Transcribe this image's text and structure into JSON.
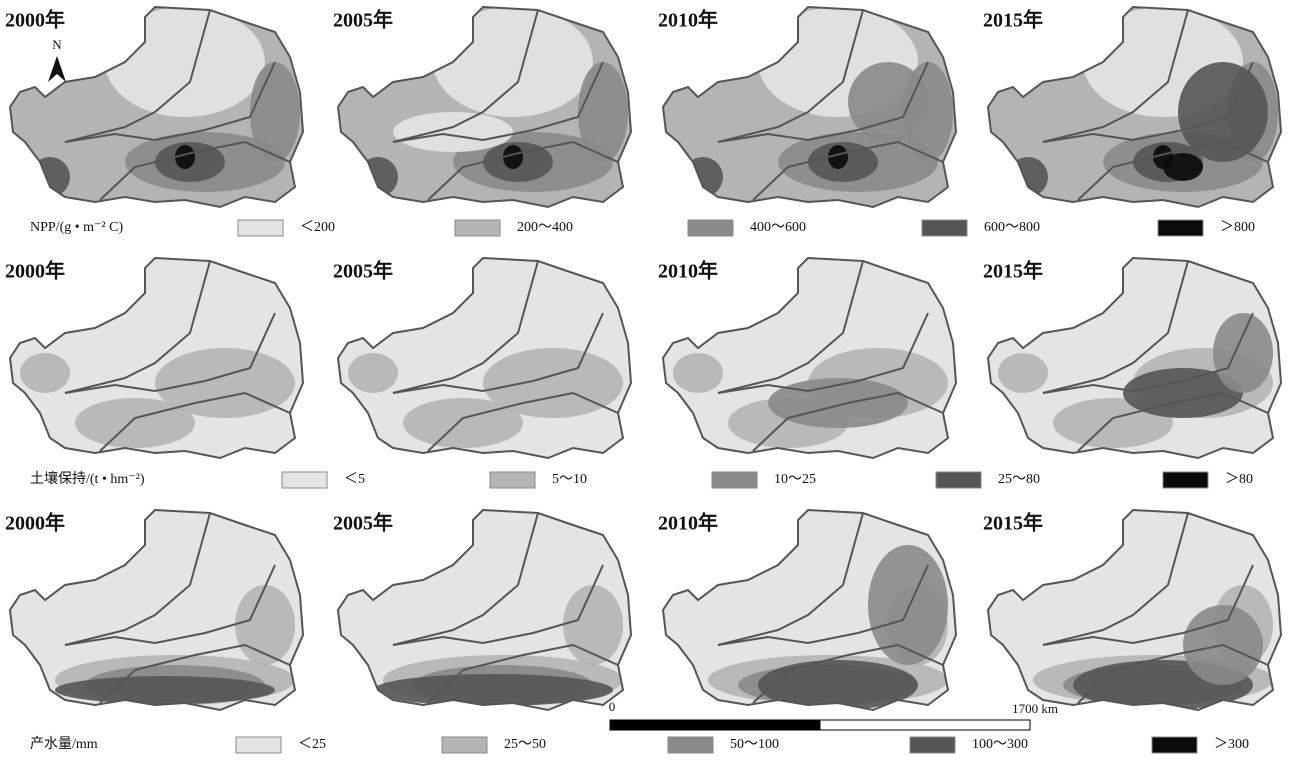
{
  "rows": [
    {
      "years": [
        "2000年",
        "2005年",
        "2010年",
        "2015年"
      ],
      "legend": {
        "title": "NPP/(g • m⁻² C)",
        "items": [
          {
            "label": "＜200",
            "color": "#e4e4e4"
          },
          {
            "label": "200～400",
            "color": "#b4b4b4"
          },
          {
            "label": "400～600",
            "color": "#8a8a8a"
          },
          {
            "label": "600～800",
            "color": "#555555"
          },
          {
            "label": "＞800",
            "color": "#0a0a0a"
          }
        ]
      }
    },
    {
      "years": [
        "2000年",
        "2005年",
        "2010年",
        "2015年"
      ],
      "legend": {
        "title": "土壤保持/(t • hm⁻²)",
        "items": [
          {
            "label": "＜5",
            "color": "#e4e4e4"
          },
          {
            "label": "5～10",
            "color": "#b4b4b4"
          },
          {
            "label": "10～25",
            "color": "#8a8a8a"
          },
          {
            "label": "25～80",
            "color": "#555555"
          },
          {
            "label": "＞80",
            "color": "#0a0a0a"
          }
        ]
      }
    },
    {
      "years": [
        "2000年",
        "2005年",
        "2010年",
        "2015年"
      ],
      "legend": {
        "title": "产水量/mm",
        "items": [
          {
            "label": "＜25",
            "color": "#e4e4e4"
          },
          {
            "label": "25～50",
            "color": "#b4b4b4"
          },
          {
            "label": "50～100",
            "color": "#8a8a8a"
          },
          {
            "label": "100～300",
            "color": "#555555"
          },
          {
            "label": "＞300",
            "color": "#0a0a0a"
          }
        ]
      }
    }
  ],
  "north": "N",
  "scale_bar": {
    "start": "0",
    "end": "1700 km"
  }
}
